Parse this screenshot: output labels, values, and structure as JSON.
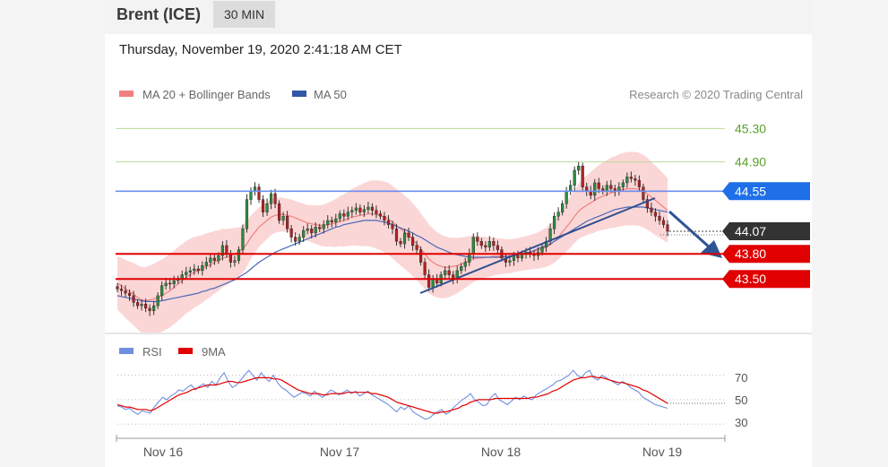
{
  "header": {
    "instrument": "Brent (ICE)",
    "timeframe": "30 MIN"
  },
  "datetime": "Thursday, November 19, 2020 2:41:18 AM CET",
  "credit": "Research © 2020 Trading Central",
  "chart_data": [
    {
      "type": "line",
      "title": "",
      "legend": [
        {
          "name": "MA 20 + Bollinger Bands",
          "color": "#f08080"
        },
        {
          "name": "MA 50",
          "color": "#3355aa"
        }
      ],
      "x_ticks": [
        "Nov 16",
        "Nov 17",
        "Nov 18",
        "Nov 19"
      ],
      "ylim": [
        42.87,
        45.55
      ],
      "levels": [
        {
          "value": 45.3,
          "label": "45.30",
          "kind": "target",
          "color": "#5aa02c"
        },
        {
          "value": 44.9,
          "label": "44.90",
          "kind": "target",
          "color": "#5aa02c"
        },
        {
          "value": 44.55,
          "label": "44.55",
          "kind": "pivot",
          "color": "#1e6fe8"
        },
        {
          "value": 44.07,
          "label": "44.07",
          "kind": "last",
          "color": "#333333"
        },
        {
          "value": 43.8,
          "label": "43.80",
          "kind": "support",
          "color": "#e00000"
        },
        {
          "value": 43.5,
          "label": "43.50",
          "kind": "support",
          "color": "#e00000"
        }
      ],
      "price_close": [
        43.38,
        43.36,
        43.33,
        43.3,
        43.22,
        43.18,
        43.2,
        43.15,
        43.12,
        43.18,
        43.3,
        43.42,
        43.45,
        43.44,
        43.48,
        43.5,
        43.55,
        43.58,
        43.6,
        43.62,
        43.6,
        43.66,
        43.7,
        43.75,
        43.72,
        43.78,
        43.9,
        43.8,
        43.7,
        43.72,
        43.85,
        44.1,
        44.45,
        44.55,
        44.6,
        44.45,
        44.3,
        44.4,
        44.52,
        44.4,
        44.2,
        44.25,
        44.1,
        44.0,
        43.95,
        44.0,
        44.08,
        44.1,
        44.05,
        44.12,
        44.1,
        44.15,
        44.2,
        44.18,
        44.22,
        44.28,
        44.25,
        44.3,
        44.32,
        44.35,
        44.3,
        44.33,
        44.36,
        44.32,
        44.28,
        44.25,
        44.2,
        44.15,
        44.1,
        43.95,
        43.92,
        44.05,
        44.0,
        43.9,
        43.85,
        43.7,
        43.55,
        43.4,
        43.5,
        43.45,
        43.55,
        43.6,
        43.55,
        43.5,
        43.6,
        43.65,
        43.7,
        43.8,
        44.0,
        43.95,
        43.9,
        43.88,
        43.95,
        43.9,
        43.85,
        43.75,
        43.7,
        43.72,
        43.78,
        43.75,
        43.8,
        43.82,
        43.8,
        43.78,
        43.82,
        43.88,
        43.95,
        44.1,
        44.25,
        44.3,
        44.4,
        44.55,
        44.62,
        44.8,
        44.85,
        44.6,
        44.55,
        44.5,
        44.65,
        44.58,
        44.55,
        44.62,
        44.58,
        44.55,
        44.6,
        44.65,
        44.72,
        44.7,
        44.68,
        44.6,
        44.45,
        44.35,
        44.3,
        44.25,
        44.2,
        44.15,
        44.07
      ],
      "ma20": [
        43.45,
        43.42,
        43.38,
        43.35,
        43.32,
        43.28,
        43.25,
        43.24,
        43.25,
        43.26,
        43.28,
        43.3,
        43.33,
        43.36,
        43.4,
        43.44,
        43.48,
        43.52,
        43.55,
        43.58,
        43.6,
        43.62,
        43.65,
        43.67,
        43.7,
        43.72,
        43.75,
        43.76,
        43.78,
        43.8,
        43.82,
        43.86,
        43.92,
        44.0,
        44.06,
        44.12,
        44.16,
        44.2,
        44.24,
        44.26,
        44.27,
        44.27,
        44.26,
        44.25,
        44.23,
        44.21,
        44.19,
        44.17,
        44.16,
        44.15,
        44.14,
        44.14,
        44.15,
        44.16,
        44.17,
        44.19,
        44.2,
        44.22,
        44.24,
        44.25,
        44.26,
        44.27,
        44.28,
        44.28,
        44.27,
        44.26,
        44.24,
        44.22,
        44.18,
        44.14,
        44.1,
        44.06,
        44.02,
        43.97,
        43.92,
        43.86,
        43.8,
        43.74,
        43.7,
        43.67,
        43.65,
        43.64,
        43.64,
        43.65,
        43.66,
        43.68,
        43.7,
        43.72,
        43.74,
        43.75,
        43.75,
        43.76,
        43.76,
        43.77,
        43.77,
        43.77,
        43.77,
        43.77,
        43.78,
        43.79,
        43.8,
        43.81,
        43.82,
        43.83,
        43.84,
        43.86,
        43.88,
        43.91,
        43.95,
        44.0,
        44.06,
        44.12,
        44.18,
        44.25,
        44.31,
        44.35,
        44.38,
        44.41,
        44.44,
        44.47,
        44.49,
        44.51,
        44.53,
        44.54,
        44.56,
        44.57,
        44.58,
        44.58,
        44.58,
        44.57,
        44.55,
        44.52,
        44.48,
        44.44,
        44.4,
        44.36,
        44.32
      ],
      "ma50": [
        43.3,
        43.29,
        43.28,
        43.27,
        43.26,
        43.25,
        43.24,
        43.23,
        43.23,
        43.23,
        43.23,
        43.24,
        43.25,
        43.26,
        43.27,
        43.28,
        43.29,
        43.3,
        43.31,
        43.32,
        43.33,
        43.35,
        43.36,
        43.38,
        43.39,
        43.41,
        43.43,
        43.45,
        43.47,
        43.49,
        43.52,
        43.55,
        43.58,
        43.62,
        43.66,
        43.7,
        43.73,
        43.76,
        43.79,
        43.82,
        43.84,
        43.86,
        43.88,
        43.9,
        43.92,
        43.94,
        43.96,
        43.98,
        44.0,
        44.02,
        44.04,
        44.06,
        44.08,
        44.1,
        44.12,
        44.13,
        44.15,
        44.16,
        44.17,
        44.18,
        44.19,
        44.2,
        44.2,
        44.2,
        44.2,
        44.19,
        44.18,
        44.17,
        44.15,
        44.13,
        44.11,
        44.09,
        44.07,
        44.05,
        44.02,
        44.0,
        43.97,
        43.94,
        43.91,
        43.88,
        43.86,
        43.84,
        43.82,
        43.8,
        43.79,
        43.78,
        43.77,
        43.76,
        43.76,
        43.76,
        43.76,
        43.76,
        43.76,
        43.76,
        43.76,
        43.76,
        43.77,
        43.77,
        43.78,
        43.79,
        43.8,
        43.81,
        43.82,
        43.84,
        43.86,
        43.88,
        43.9,
        43.92,
        43.95,
        43.98,
        44.01,
        44.04,
        44.07,
        44.1,
        44.13,
        44.16,
        44.19,
        44.21,
        44.23,
        44.25,
        44.27,
        44.29,
        44.31,
        44.33,
        44.34,
        44.35,
        44.36,
        44.36,
        44.36,
        44.36,
        44.36,
        44.35,
        44.34,
        44.33,
        44.32,
        44.31,
        44.3
      ]
    },
    {
      "type": "line",
      "title": "",
      "legend": [
        {
          "name": "RSI",
          "color": "#6f8fe0"
        },
        {
          "name": "9MA",
          "color": "#e00000"
        }
      ],
      "ylim": [
        25,
        80
      ],
      "y_ticks": [
        70,
        50,
        30
      ],
      "rsi": [
        45,
        44,
        42,
        43,
        40,
        38,
        41,
        40,
        39,
        44,
        48,
        52,
        50,
        53,
        55,
        58,
        57,
        60,
        62,
        58,
        61,
        63,
        60,
        65,
        62,
        68,
        72,
        65,
        60,
        62,
        66,
        70,
        74,
        70,
        66,
        72,
        68,
        65,
        70,
        64,
        60,
        58,
        55,
        52,
        54,
        56,
        55,
        53,
        57,
        54,
        52,
        55,
        58,
        56,
        54,
        56,
        58,
        55,
        57,
        53,
        55,
        57,
        54,
        52,
        50,
        48,
        46,
        43,
        40,
        44,
        42,
        45,
        40,
        38,
        36,
        34,
        35,
        38,
        40,
        42,
        38,
        40,
        44,
        47,
        50,
        52,
        55,
        50,
        48,
        45,
        46,
        52,
        55,
        50,
        48,
        46,
        49,
        52,
        50,
        53,
        51,
        50,
        54,
        56,
        58,
        60,
        62,
        65,
        66,
        68,
        70,
        74,
        70,
        68,
        72,
        74,
        68,
        66,
        70,
        68,
        66,
        64,
        62,
        65,
        63,
        60,
        58,
        56,
        52,
        50,
        48,
        46,
        45,
        44,
        43
      ],
      "ma9": [
        46,
        45,
        44,
        44,
        43,
        42,
        42,
        42,
        41,
        42,
        44,
        46,
        48,
        50,
        52,
        54,
        55,
        56,
        58,
        59,
        60,
        61,
        62,
        62,
        62,
        63,
        64,
        65,
        65,
        64,
        64,
        65,
        66,
        67,
        68,
        68,
        68,
        68,
        67,
        67,
        66,
        64,
        62,
        60,
        58,
        57,
        56,
        55,
        55,
        55,
        54,
        54,
        55,
        55,
        55,
        55,
        56,
        56,
        56,
        56,
        56,
        56,
        55,
        55,
        54,
        53,
        52,
        50,
        48,
        47,
        46,
        45,
        44,
        43,
        42,
        41,
        40,
        39,
        39,
        40,
        40,
        41,
        42,
        43,
        45,
        46,
        48,
        49,
        50,
        50,
        50,
        50,
        51,
        51,
        51,
        51,
        51,
        51,
        51,
        51,
        51,
        52,
        52,
        53,
        54,
        55,
        57,
        58,
        60,
        62,
        64,
        66,
        67,
        68,
        68,
        69,
        69,
        68,
        68,
        67,
        66,
        65,
        64,
        64,
        63,
        62,
        61,
        60,
        58,
        57,
        55,
        53,
        51,
        49,
        47
      ]
    }
  ],
  "rsi_ticks": [
    "70",
    "50",
    "30"
  ]
}
